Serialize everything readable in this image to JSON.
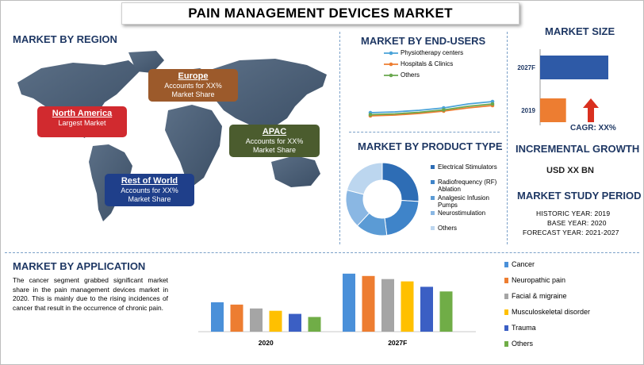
{
  "title": "PAIN MANAGEMENT DEVICES MARKET",
  "region": {
    "heading": "MARKET BY REGION",
    "boxes": [
      {
        "name": "Europe",
        "line1": "Accounts for XX%",
        "line2": "Market Share",
        "color": "#9c5a2b"
      },
      {
        "name": "North America",
        "line1": "Largest Market",
        "line2": "",
        "color": "#d12a2f"
      },
      {
        "name": "APAC",
        "line1": "Accounts for XX%",
        "line2": "Market Share",
        "color": "#4b5c2e"
      },
      {
        "name": "Rest of World",
        "line1": "Accounts for XX%",
        "line2": "Market Share",
        "color": "#1f3f8a"
      }
    ]
  },
  "end_users": {
    "heading": "MARKET BY END-USERS",
    "chart_data": {
      "type": "line",
      "x": [
        1,
        2,
        3,
        4,
        5,
        6
      ],
      "ylim": [
        0,
        10
      ],
      "series": [
        {
          "name": "Physiotherapy centers",
          "values": [
            2.4,
            2.6,
            3.0,
            3.6,
            4.6,
            5.2
          ],
          "color": "#4aa3d8"
        },
        {
          "name": "Hospitals & Clinics",
          "values": [
            1.6,
            1.8,
            2.2,
            2.8,
            3.6,
            4.2
          ],
          "color": "#ed7d31"
        },
        {
          "name": "Others",
          "values": [
            1.9,
            2.1,
            2.5,
            3.1,
            4.0,
            4.6
          ],
          "color": "#6aa84f"
        }
      ]
    }
  },
  "market_size": {
    "heading": "MARKET SIZE",
    "chart_data": {
      "type": "bar",
      "orientation": "horizontal",
      "categories": [
        "2027F",
        "2019"
      ],
      "values": [
        100,
        38
      ],
      "colors": [
        "#2e5aa7",
        "#ed7d31"
      ]
    },
    "cagr": "CAGR: XX%"
  },
  "product_type": {
    "heading": "MARKET BY PRODUCT TYPE",
    "chart_data": {
      "type": "pie",
      "donut": true,
      "labels": [
        "Electrical Stimulators",
        "Radiofrequency (RF) Ablation",
        "Analgesic Infusion Pumps",
        "Neurostimulation",
        "Others"
      ],
      "values": [
        26,
        22,
        14,
        17,
        21
      ],
      "colors": [
        "#2e6db5",
        "#3f84c9",
        "#5b9bd5",
        "#8ab7e3",
        "#bcd6ef"
      ]
    }
  },
  "incremental": {
    "heading": "INCREMENTAL GROWTH",
    "value": "USD XX BN"
  },
  "study_period": {
    "heading": "MARKET STUDY PERIOD",
    "historic": "HISTORIC YEAR: 2019",
    "base": "BASE YEAR: 2020",
    "forecast": "FORECAST YEAR: 2021-2027"
  },
  "application": {
    "heading": "MARKET BY APPLICATION",
    "text": "The cancer segment grabbed significant market share in the pain management devices market in 2020. This is mainly due to the rising incidences of cancer that result in the occurrence of chronic pain.",
    "chart_data": {
      "type": "bar",
      "categories": [
        "2020",
        "2027F"
      ],
      "ylim": [
        0,
        80
      ],
      "series": [
        {
          "name": "Cancer",
          "values": [
            38,
            75
          ],
          "color": "#4a90d9"
        },
        {
          "name": "Neuropathic pain",
          "values": [
            35,
            72
          ],
          "color": "#ed7d31"
        },
        {
          "name": "Facial & migraine",
          "values": [
            30,
            68
          ],
          "color": "#a5a5a5"
        },
        {
          "name": "Musculoskeletal disorder",
          "values": [
            27,
            65
          ],
          "color": "#ffc000"
        },
        {
          "name": "Trauma",
          "values": [
            23,
            58
          ],
          "color": "#3b5fc4"
        },
        {
          "name": "Others",
          "values": [
            19,
            52
          ],
          "color": "#70ad47"
        }
      ]
    }
  }
}
